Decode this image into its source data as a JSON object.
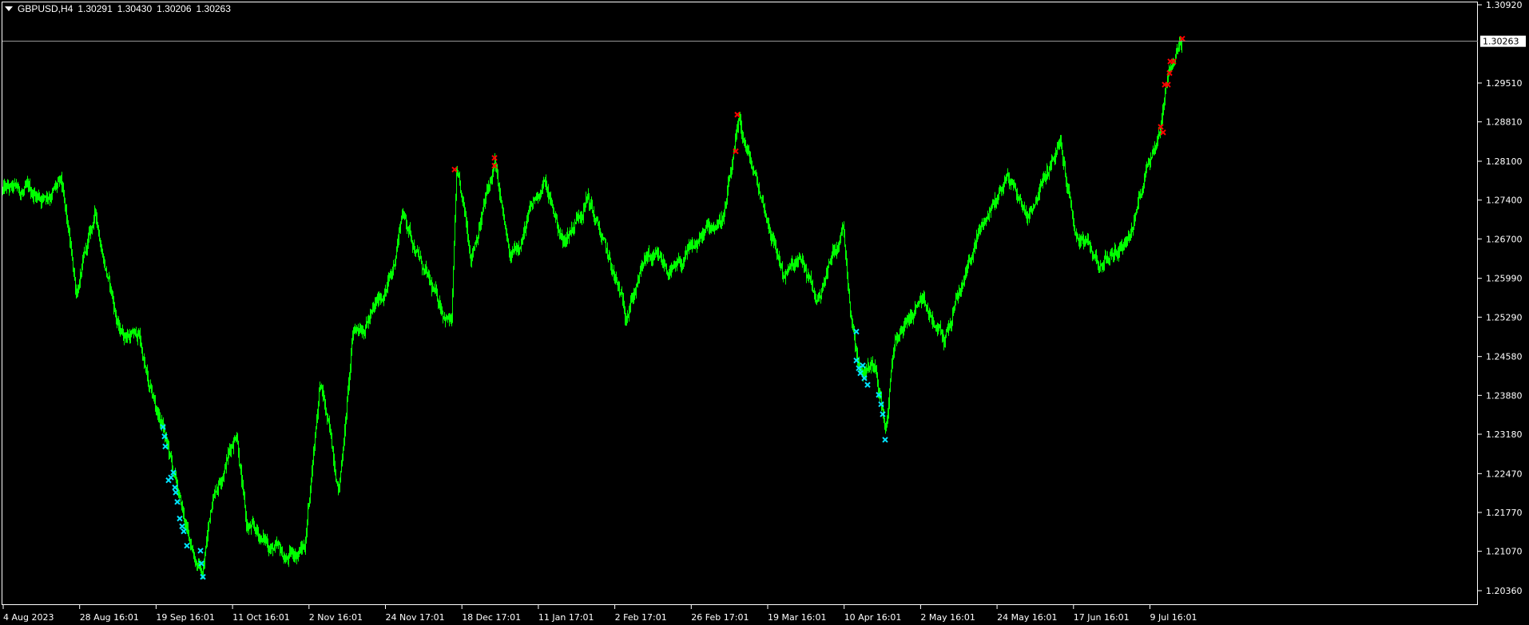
{
  "header": {
    "symbol": "GBPUSD,H4",
    "open": "1.30291",
    "high": "1.30430",
    "low": "1.30206",
    "close": "1.30263",
    "menu_icon": "triangle-down-icon"
  },
  "colors": {
    "background": "#000000",
    "bars": "#00ff00",
    "sell_marker": "#ff0000",
    "buy_marker": "#00e5ff",
    "axis": "#ffffff",
    "price_line": "#a0a0a0"
  },
  "chart_data": {
    "type": "line",
    "symbol": "GBPUSD",
    "timeframe": "H4",
    "ylim": [
      1.2036,
      1.3092
    ],
    "current_price": "1.30263",
    "y_ticks": [
      "1.30920",
      "1.29510",
      "1.28810",
      "1.28100",
      "1.27400",
      "1.26700",
      "1.25990",
      "1.25290",
      "1.24580",
      "1.23880",
      "1.23180",
      "1.22470",
      "1.21770",
      "1.21070",
      "1.20360"
    ],
    "x_ticks": [
      "4 Aug 2023",
      "28 Aug 16:01",
      "19 Sep 16:01",
      "11 Oct 16:01",
      "2 Nov 16:01",
      "24 Nov 17:01",
      "18 Dec 17:01",
      "11 Jan 17:01",
      "2 Feb 17:01",
      "26 Feb 17:01",
      "19 Mar 16:01",
      "10 Apr 16:01",
      "2 May 16:01",
      "24 May 16:01",
      "17 Jun 16:01",
      "9 Jul 16:01"
    ],
    "price_path_bar_index_close": [
      [
        0,
        1.2758
      ],
      [
        49,
        1.2749
      ],
      [
        73,
        1.2767
      ],
      [
        92,
        1.2574
      ],
      [
        116,
        1.2714
      ],
      [
        146,
        1.2503
      ],
      [
        171,
        1.2495
      ],
      [
        183,
        1.2398
      ],
      [
        201,
        1.2328
      ],
      [
        220,
        1.2205
      ],
      [
        232,
        1.2134
      ],
      [
        250,
        1.2064
      ],
      [
        262,
        1.2205
      ],
      [
        293,
        1.2328
      ],
      [
        305,
        1.2152
      ],
      [
        336,
        1.2117
      ],
      [
        354,
        1.2091
      ],
      [
        378,
        1.2117
      ],
      [
        397,
        1.2416
      ],
      [
        421,
        1.2223
      ],
      [
        439,
        1.2503
      ],
      [
        464,
        1.2538
      ],
      [
        488,
        1.2609
      ],
      [
        500,
        1.2723
      ],
      [
        537,
        1.2574
      ],
      [
        562,
        1.2521
      ],
      [
        568,
        1.2785
      ],
      [
        586,
        1.2644
      ],
      [
        616,
        1.2803
      ],
      [
        635,
        1.2626
      ],
      [
        677,
        1.2776
      ],
      [
        702,
        1.2662
      ],
      [
        732,
        1.2749
      ],
      [
        779,
        1.2538
      ],
      [
        806,
        1.2635
      ],
      [
        842,
        1.2609
      ],
      [
        879,
        1.2679
      ],
      [
        903,
        1.2714
      ],
      [
        922,
        1.2872
      ],
      [
        952,
        1.2732
      ],
      [
        977,
        1.2609
      ],
      [
        1001,
        1.2626
      ],
      [
        1019,
        1.2556
      ],
      [
        1052,
        1.2697
      ],
      [
        1062,
        1.2538
      ],
      [
        1074,
        1.2433
      ],
      [
        1093,
        1.2451
      ],
      [
        1105,
        1.2328
      ],
      [
        1117,
        1.2486
      ],
      [
        1147,
        1.2556
      ],
      [
        1178,
        1.2486
      ],
      [
        1190,
        1.2538
      ],
      [
        1221,
        1.2679
      ],
      [
        1258,
        1.2785
      ],
      [
        1282,
        1.2714
      ],
      [
        1306,
        1.2785
      ],
      [
        1324,
        1.2837
      ],
      [
        1343,
        1.2679
      ],
      [
        1373,
        1.2626
      ],
      [
        1398,
        1.2653
      ],
      [
        1416,
        1.2697
      ],
      [
        1434,
        1.282
      ],
      [
        1447,
        1.2855
      ],
      [
        1459,
        1.2978
      ],
      [
        1477,
        1.3026
      ]
    ],
    "sell_markers": [
      [
        566,
        1.2795
      ],
      [
        616,
        1.2816
      ],
      [
        616,
        1.2802
      ],
      [
        920,
        1.2894
      ],
      [
        918,
        1.2828
      ],
      [
        1450,
        1.2872
      ],
      [
        1453,
        1.2862
      ],
      [
        1455,
        1.2948
      ],
      [
        1459,
        1.2948
      ],
      [
        1461,
        1.2969
      ],
      [
        1462,
        1.299
      ],
      [
        1466,
        1.299
      ],
      [
        1477,
        1.3031
      ]
    ],
    "buy_markers": [
      [
        201,
        1.2331
      ],
      [
        203,
        1.2314
      ],
      [
        204,
        1.2296
      ],
      [
        208,
        1.2235
      ],
      [
        211,
        1.224
      ],
      [
        214,
        1.2249
      ],
      [
        216,
        1.2222
      ],
      [
        217,
        1.2213
      ],
      [
        219,
        1.2196
      ],
      [
        222,
        1.2166
      ],
      [
        225,
        1.2152
      ],
      [
        227,
        1.2143
      ],
      [
        231,
        1.2117
      ],
      [
        248,
        1.2108
      ],
      [
        249,
        1.2085
      ],
      [
        251,
        1.2061
      ],
      [
        1069,
        1.2503
      ],
      [
        1069,
        1.2451
      ],
      [
        1072,
        1.2437
      ],
      [
        1074,
        1.2428
      ],
      [
        1077,
        1.2442
      ],
      [
        1079,
        1.2419
      ],
      [
        1083,
        1.2407
      ],
      [
        1097,
        1.2389
      ],
      [
        1100,
        1.2372
      ],
      [
        1102,
        1.2354
      ],
      [
        1105,
        1.2308
      ]
    ]
  }
}
